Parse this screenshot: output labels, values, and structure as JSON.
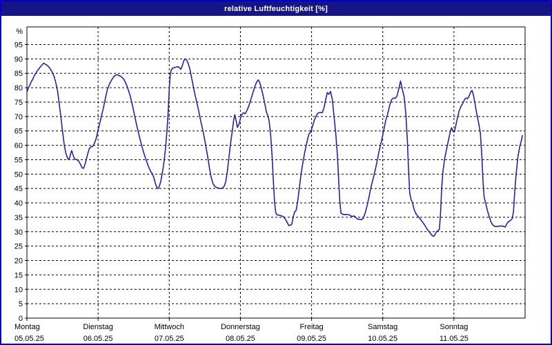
{
  "window": {
    "title": "relative Luftfeuchtigkeit [%]",
    "titlebar_color": "#151586",
    "border_color": "#0101c6",
    "background": "#ffffff"
  },
  "chart_data": {
    "type": "line",
    "title": "relative Luftfeuchtigkeit [%]",
    "ylabel": "%",
    "y_unit_label": "%",
    "ylim": [
      0,
      101
    ],
    "y_ticks": [
      0,
      5,
      10,
      15,
      20,
      25,
      30,
      35,
      40,
      45,
      50,
      55,
      60,
      65,
      70,
      75,
      80,
      85,
      90,
      95
    ],
    "x_range_hours": [
      0,
      168
    ],
    "grid": "dashed",
    "legend_position": "none",
    "line_color": "#2121aa",
    "grid_color": "#000000",
    "days": [
      {
        "name": "Montag",
        "date": "05.05.25"
      },
      {
        "name": "Dienstag",
        "date": "06.05.25"
      },
      {
        "name": "Mittwoch",
        "date": "07.05.25"
      },
      {
        "name": "Donnerstag",
        "date": "08.05.25"
      },
      {
        "name": "Freitag",
        "date": "09.05.25"
      },
      {
        "name": "Samstag",
        "date": "10.05.25"
      },
      {
        "name": "Sonntag",
        "date": "11.05.25"
      }
    ],
    "series": [
      {
        "name": "relative Luftfeuchtigkeit",
        "points": [
          [
            0,
            78.5
          ],
          [
            0.5,
            79.8
          ],
          [
            1,
            81
          ],
          [
            1.5,
            82.1
          ],
          [
            2,
            83
          ],
          [
            2.5,
            84.2
          ],
          [
            3,
            85
          ],
          [
            3.5,
            85.9
          ],
          [
            4,
            86.5
          ],
          [
            4.5,
            87.2
          ],
          [
            5,
            87.8
          ],
          [
            5.6,
            88.5
          ],
          [
            6.2,
            88.2
          ],
          [
            6.8,
            87.8
          ],
          [
            7.4,
            87.2
          ],
          [
            8,
            86.3
          ],
          [
            8.6,
            85.3
          ],
          [
            9.2,
            83.8
          ],
          [
            9.8,
            81.5
          ],
          [
            10.4,
            78.5
          ],
          [
            11,
            73.5
          ],
          [
            11.5,
            69.5
          ],
          [
            12,
            64.9
          ],
          [
            12.6,
            60
          ],
          [
            13.2,
            57
          ],
          [
            13.8,
            55.3
          ],
          [
            14.2,
            55
          ],
          [
            14.8,
            57.2
          ],
          [
            15.1,
            58.2
          ],
          [
            15.6,
            56.5
          ],
          [
            16.1,
            55.3
          ],
          [
            16.8,
            55
          ],
          [
            17.4,
            54.6
          ],
          [
            18,
            53.5
          ],
          [
            18.6,
            52.2
          ],
          [
            19.1,
            52
          ],
          [
            19.6,
            53.4
          ],
          [
            20.1,
            55.4
          ],
          [
            20.5,
            57
          ],
          [
            21,
            58.8
          ],
          [
            21.6,
            59.5
          ],
          [
            22.2,
            59.6
          ],
          [
            22.8,
            60.8
          ],
          [
            23.4,
            62.5
          ],
          [
            24,
            65.3
          ],
          [
            24.6,
            67.8
          ],
          [
            25.1,
            70.1
          ],
          [
            25.8,
            73
          ],
          [
            26.5,
            76.5
          ],
          [
            27.1,
            79.3
          ],
          [
            27.8,
            81.2
          ],
          [
            28.5,
            82.6
          ],
          [
            29.2,
            83.7
          ],
          [
            29.9,
            84.4
          ],
          [
            30.6,
            84.5
          ],
          [
            31.3,
            84.1
          ],
          [
            32,
            83.7
          ],
          [
            32.7,
            82.9
          ],
          [
            33.4,
            81.5
          ],
          [
            34.1,
            79.6
          ],
          [
            34.8,
            77.2
          ],
          [
            35.5,
            74.2
          ],
          [
            36.2,
            70.9
          ],
          [
            36.9,
            67.5
          ],
          [
            37.6,
            64.4
          ],
          [
            38.3,
            61.5
          ],
          [
            39,
            58.8
          ],
          [
            39.7,
            56.4
          ],
          [
            40.4,
            54.3
          ],
          [
            41.1,
            52.4
          ],
          [
            41.8,
            50.8
          ],
          [
            42.3,
            50.2
          ],
          [
            42.9,
            48.4
          ],
          [
            43.4,
            46.5
          ],
          [
            43.9,
            45.2
          ],
          [
            44.3,
            45
          ],
          [
            44.8,
            46.2
          ],
          [
            45.2,
            47.8
          ],
          [
            45.7,
            50.5
          ],
          [
            46.2,
            54
          ],
          [
            46.7,
            58.5
          ],
          [
            47.2,
            64.5
          ],
          [
            47.6,
            71
          ],
          [
            48,
            79.5
          ],
          [
            48.3,
            84.3
          ],
          [
            48.7,
            86.2
          ],
          [
            49.2,
            86.8
          ],
          [
            49.8,
            87
          ],
          [
            50.4,
            87.2
          ],
          [
            51,
            87.3
          ],
          [
            51.5,
            86.8
          ],
          [
            51.9,
            86.4
          ],
          [
            52.4,
            87.6
          ],
          [
            52.9,
            89.3
          ],
          [
            53.3,
            90
          ],
          [
            53.9,
            89.6
          ],
          [
            54.4,
            88.3
          ],
          [
            54.9,
            86.8
          ],
          [
            55.5,
            83.7
          ],
          [
            56.1,
            80.5
          ],
          [
            56.7,
            77.5
          ],
          [
            57.3,
            74.8
          ],
          [
            57.9,
            72.1
          ],
          [
            58.5,
            69
          ],
          [
            59.1,
            66.2
          ],
          [
            59.7,
            63.3
          ],
          [
            60.3,
            60
          ],
          [
            60.9,
            56.5
          ],
          [
            61.5,
            52.5
          ],
          [
            62.1,
            49
          ],
          [
            62.7,
            46.8
          ],
          [
            63.3,
            45.8
          ],
          [
            64,
            45.3
          ],
          [
            64.8,
            45.1
          ],
          [
            65.5,
            45
          ],
          [
            66.1,
            45.3
          ],
          [
            66.6,
            45.9
          ],
          [
            67.1,
            47.6
          ],
          [
            67.6,
            51
          ],
          [
            68.1,
            55.5
          ],
          [
            68.6,
            60
          ],
          [
            69.2,
            64.5
          ],
          [
            69.7,
            68.5
          ],
          [
            70.1,
            70.6
          ],
          [
            70.6,
            68.3
          ],
          [
            71,
            66.2
          ],
          [
            71.5,
            67.3
          ],
          [
            72,
            69.3
          ],
          [
            72.5,
            70.8
          ],
          [
            73,
            71.3
          ],
          [
            73.6,
            71
          ],
          [
            74.1,
            71.9
          ],
          [
            74.7,
            73.3
          ],
          [
            75.3,
            75.2
          ],
          [
            75.9,
            77.2
          ],
          [
            76.5,
            79.2
          ],
          [
            77,
            80.8
          ],
          [
            77.5,
            82
          ],
          [
            78,
            82.7
          ],
          [
            78.5,
            81.8
          ],
          [
            79,
            80
          ],
          [
            79.6,
            77.5
          ],
          [
            80.2,
            74.5
          ],
          [
            80.8,
            71.5
          ],
          [
            81.3,
            70.1
          ],
          [
            81.7,
            68.3
          ],
          [
            82.2,
            63.5
          ],
          [
            82.7,
            56
          ],
          [
            83.1,
            48
          ],
          [
            83.5,
            40.5
          ],
          [
            83.9,
            36.6
          ],
          [
            84.3,
            35.9
          ],
          [
            85.1,
            35.7
          ],
          [
            85.9,
            35.5
          ],
          [
            86.6,
            35.1
          ],
          [
            87.3,
            34.1
          ],
          [
            87.9,
            33
          ],
          [
            88.3,
            32.1
          ],
          [
            88.8,
            32.3
          ],
          [
            89.3,
            32.5
          ],
          [
            89.8,
            35.1
          ],
          [
            90.3,
            36.9
          ],
          [
            90.8,
            37.4
          ],
          [
            91.3,
            40.5
          ],
          [
            91.9,
            45.5
          ],
          [
            92.5,
            50.3
          ],
          [
            93.1,
            54.2
          ],
          [
            93.7,
            57.6
          ],
          [
            94.4,
            61
          ],
          [
            95.1,
            63.9
          ],
          [
            95.7,
            64.6
          ],
          [
            96.3,
            66.6
          ],
          [
            97,
            68.9
          ],
          [
            97.6,
            70.4
          ],
          [
            98.2,
            71.2
          ],
          [
            98.9,
            71.4
          ],
          [
            99.6,
            71.3
          ],
          [
            100.2,
            73.1
          ],
          [
            100.8,
            76.1
          ],
          [
            101.3,
            78.3
          ],
          [
            101.8,
            77.7
          ],
          [
            102.4,
            78.7
          ],
          [
            103,
            75.8
          ],
          [
            103.6,
            69.9
          ],
          [
            104.2,
            63.5
          ],
          [
            104.7,
            56.5
          ],
          [
            105.1,
            48.5
          ],
          [
            105.5,
            40.8
          ],
          [
            105.9,
            36.5
          ],
          [
            106.4,
            36.1
          ],
          [
            107.1,
            35.9
          ],
          [
            107.8,
            36
          ],
          [
            108.5,
            35.9
          ],
          [
            109.1,
            35.6
          ],
          [
            109.7,
            35.2
          ],
          [
            110.2,
            35.5
          ],
          [
            110.8,
            35.1
          ],
          [
            111.4,
            34.4
          ],
          [
            112.1,
            34.3
          ],
          [
            112.8,
            34.2
          ],
          [
            113.4,
            34.6
          ],
          [
            114.1,
            36.6
          ],
          [
            114.8,
            39.4
          ],
          [
            115.4,
            42.2
          ],
          [
            116.1,
            45.8
          ],
          [
            116.8,
            48.6
          ],
          [
            117.5,
            51.6
          ],
          [
            118.2,
            55.1
          ],
          [
            118.9,
            58.6
          ],
          [
            119.6,
            61.6
          ],
          [
            120.3,
            65.1
          ],
          [
            121,
            68.6
          ],
          [
            121.7,
            71.1
          ],
          [
            122.4,
            74.1
          ],
          [
            123,
            75.9
          ],
          [
            123.6,
            76.4
          ],
          [
            124.2,
            76.3
          ],
          [
            124.8,
            77.1
          ],
          [
            125.4,
            79.6
          ],
          [
            126,
            82.3
          ],
          [
            126.6,
            79.4
          ],
          [
            127.2,
            76.9
          ],
          [
            127.8,
            70.8
          ],
          [
            128.3,
            61.5
          ],
          [
            128.7,
            51.5
          ],
          [
            129.1,
            43.4
          ],
          [
            129.6,
            41
          ],
          [
            130,
            40.2
          ],
          [
            130.6,
            37.6
          ],
          [
            131.2,
            36.3
          ],
          [
            131.9,
            35.3
          ],
          [
            132.5,
            34.6
          ],
          [
            133.1,
            33.8
          ],
          [
            133.7,
            33
          ],
          [
            134.3,
            32
          ],
          [
            134.9,
            31
          ],
          [
            135.5,
            30.2
          ],
          [
            136.1,
            29.4
          ],
          [
            136.7,
            28.6
          ],
          [
            137.1,
            28.4
          ],
          [
            137.6,
            28.9
          ],
          [
            138.1,
            30
          ],
          [
            138.7,
            30.4
          ],
          [
            139.1,
            30.8
          ],
          [
            139.5,
            36.5
          ],
          [
            139.9,
            45.5
          ],
          [
            140.3,
            51
          ],
          [
            140.9,
            55.5
          ],
          [
            141.5,
            58.5
          ],
          [
            142.1,
            61.5
          ],
          [
            142.7,
            64.4
          ],
          [
            143.2,
            66.1
          ],
          [
            143.7,
            64.8
          ],
          [
            144.1,
            64.6
          ],
          [
            144.6,
            66.6
          ],
          [
            145.2,
            69.6
          ],
          [
            145.8,
            72.1
          ],
          [
            146.4,
            73.5
          ],
          [
            147,
            74.6
          ],
          [
            147.6,
            75.9
          ],
          [
            148.1,
            76.4
          ],
          [
            148.6,
            76.2
          ],
          [
            149.1,
            77.1
          ],
          [
            149.6,
            78.4
          ],
          [
            150.1,
            79.1
          ],
          [
            150.6,
            77.4
          ],
          [
            151.1,
            74.5
          ],
          [
            151.7,
            71
          ],
          [
            152.3,
            68
          ],
          [
            152.9,
            64.4
          ],
          [
            153.4,
            56.5
          ],
          [
            153.8,
            47.5
          ],
          [
            154.2,
            42
          ],
          [
            154.7,
            40
          ],
          [
            155.3,
            37.4
          ],
          [
            155.9,
            35.2
          ],
          [
            156.5,
            33.4
          ],
          [
            157.1,
            32.3
          ],
          [
            157.7,
            31.9
          ],
          [
            158.3,
            31.8
          ],
          [
            159.1,
            31.9
          ],
          [
            159.9,
            32
          ],
          [
            160.7,
            31.9
          ],
          [
            161.3,
            31.6
          ],
          [
            162,
            33
          ],
          [
            162.5,
            33.6
          ],
          [
            163.1,
            33.9
          ],
          [
            163.7,
            34.6
          ],
          [
            164.1,
            37
          ],
          [
            164.5,
            44
          ],
          [
            165,
            50.2
          ],
          [
            165.6,
            56.2
          ],
          [
            166.2,
            59.6
          ],
          [
            166.8,
            61.8
          ],
          [
            167.1,
            63.4
          ]
        ]
      }
    ]
  }
}
